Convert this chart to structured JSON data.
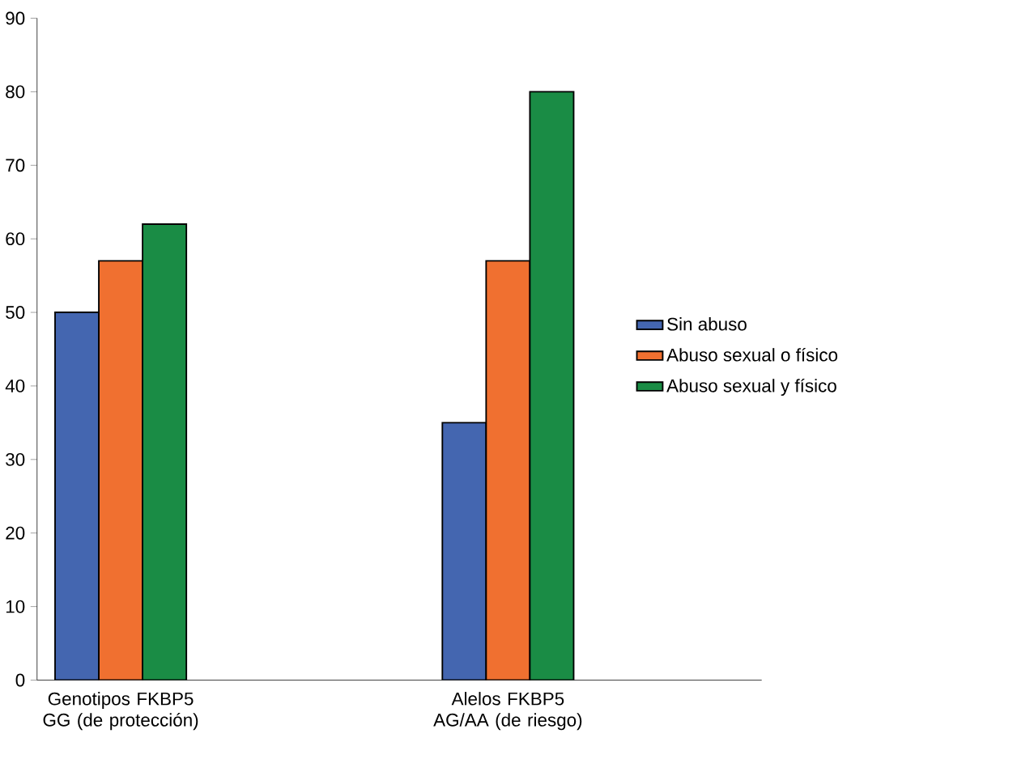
{
  "chart_data": {
    "type": "bar",
    "categories": [
      "Genotipos FKBP5 GG (de protección)",
      "Alelos  FKBP5 AG/AA (de riesgo)"
    ],
    "series": [
      {
        "name": "Sin abuso",
        "color": "#4466b0",
        "values": [
          50,
          35
        ]
      },
      {
        "name": "Abuso sexual o físico",
        "color": "#f07030",
        "values": [
          57,
          57
        ]
      },
      {
        "name": "Abuso sexual y físico",
        "color": "#1a8c45",
        "values": [
          62,
          80
        ]
      }
    ],
    "ylim": [
      0,
      90
    ],
    "yticks": [
      0,
      10,
      20,
      30,
      40,
      50,
      60,
      70,
      80,
      90
    ],
    "grid": false,
    "legend": "right"
  }
}
